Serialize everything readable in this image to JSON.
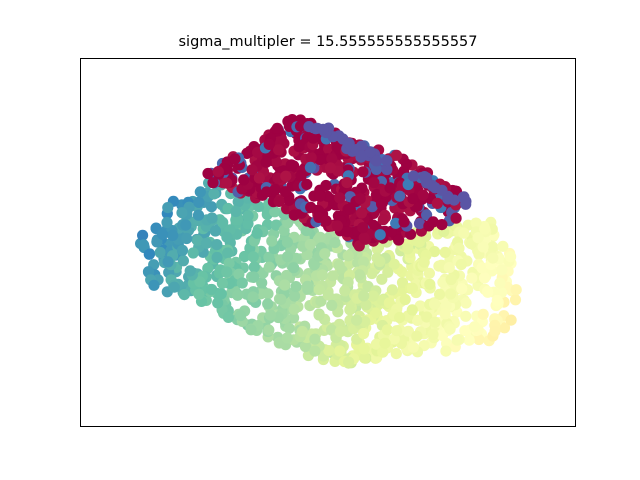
{
  "chart_data": {
    "type": "scatter",
    "title": "sigma_multipler = 15.555555555555557",
    "xlabel": "",
    "ylabel": "",
    "ticks_shown": false,
    "grid": false,
    "legend": "none",
    "colormap": "Spectral",
    "marker_color": "position along the manifold (colormap Spectral)",
    "n_points_estimate": 1500,
    "manifold": "Swiss-roll–like cluster, two sheets: red/orange/yellow upper ridge and blue/green/yellow lower slab"
  }
}
